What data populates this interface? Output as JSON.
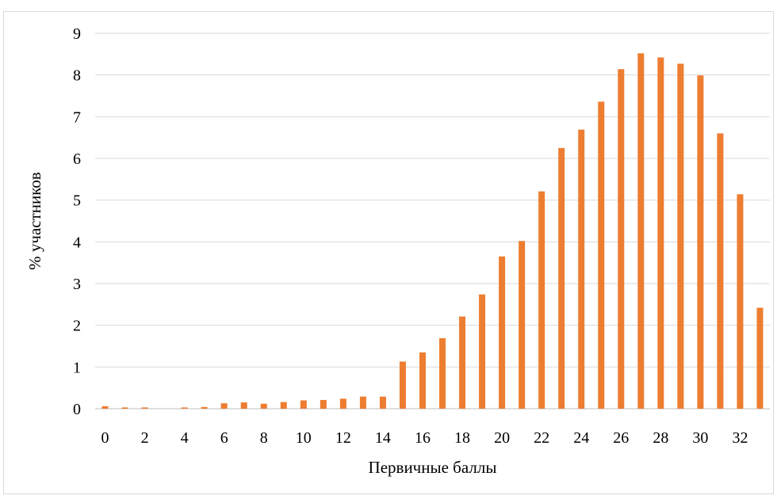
{
  "chart_data": {
    "type": "bar",
    "xlabel": "Первичные баллы",
    "ylabel": "% участников",
    "ylim": [
      0,
      9
    ],
    "yticks": [
      0,
      1,
      2,
      3,
      4,
      5,
      6,
      7,
      8,
      9
    ],
    "x_tick_labels": [
      "0",
      "2",
      "4",
      "6",
      "8",
      "10",
      "12",
      "14",
      "16",
      "18",
      "20",
      "22",
      "24",
      "26",
      "28",
      "30",
      "32"
    ],
    "grid": true,
    "legend": "none",
    "bar_color": "#ed7d31",
    "categories": [
      0,
      1,
      2,
      3,
      4,
      5,
      6,
      7,
      8,
      9,
      10,
      11,
      12,
      13,
      14,
      15,
      16,
      17,
      18,
      19,
      20,
      21,
      22,
      23,
      24,
      25,
      26,
      27,
      28,
      29,
      30,
      31,
      32,
      33
    ],
    "values": [
      0.06,
      0.03,
      0.03,
      0.0,
      0.03,
      0.04,
      0.13,
      0.15,
      0.12,
      0.16,
      0.2,
      0.21,
      0.24,
      0.29,
      0.29,
      1.13,
      1.35,
      1.69,
      2.21,
      2.74,
      3.65,
      4.02,
      5.21,
      6.25,
      6.69,
      7.36,
      8.14,
      8.52,
      8.42,
      8.27,
      7.99,
      6.6,
      5.14,
      2.42
    ]
  }
}
